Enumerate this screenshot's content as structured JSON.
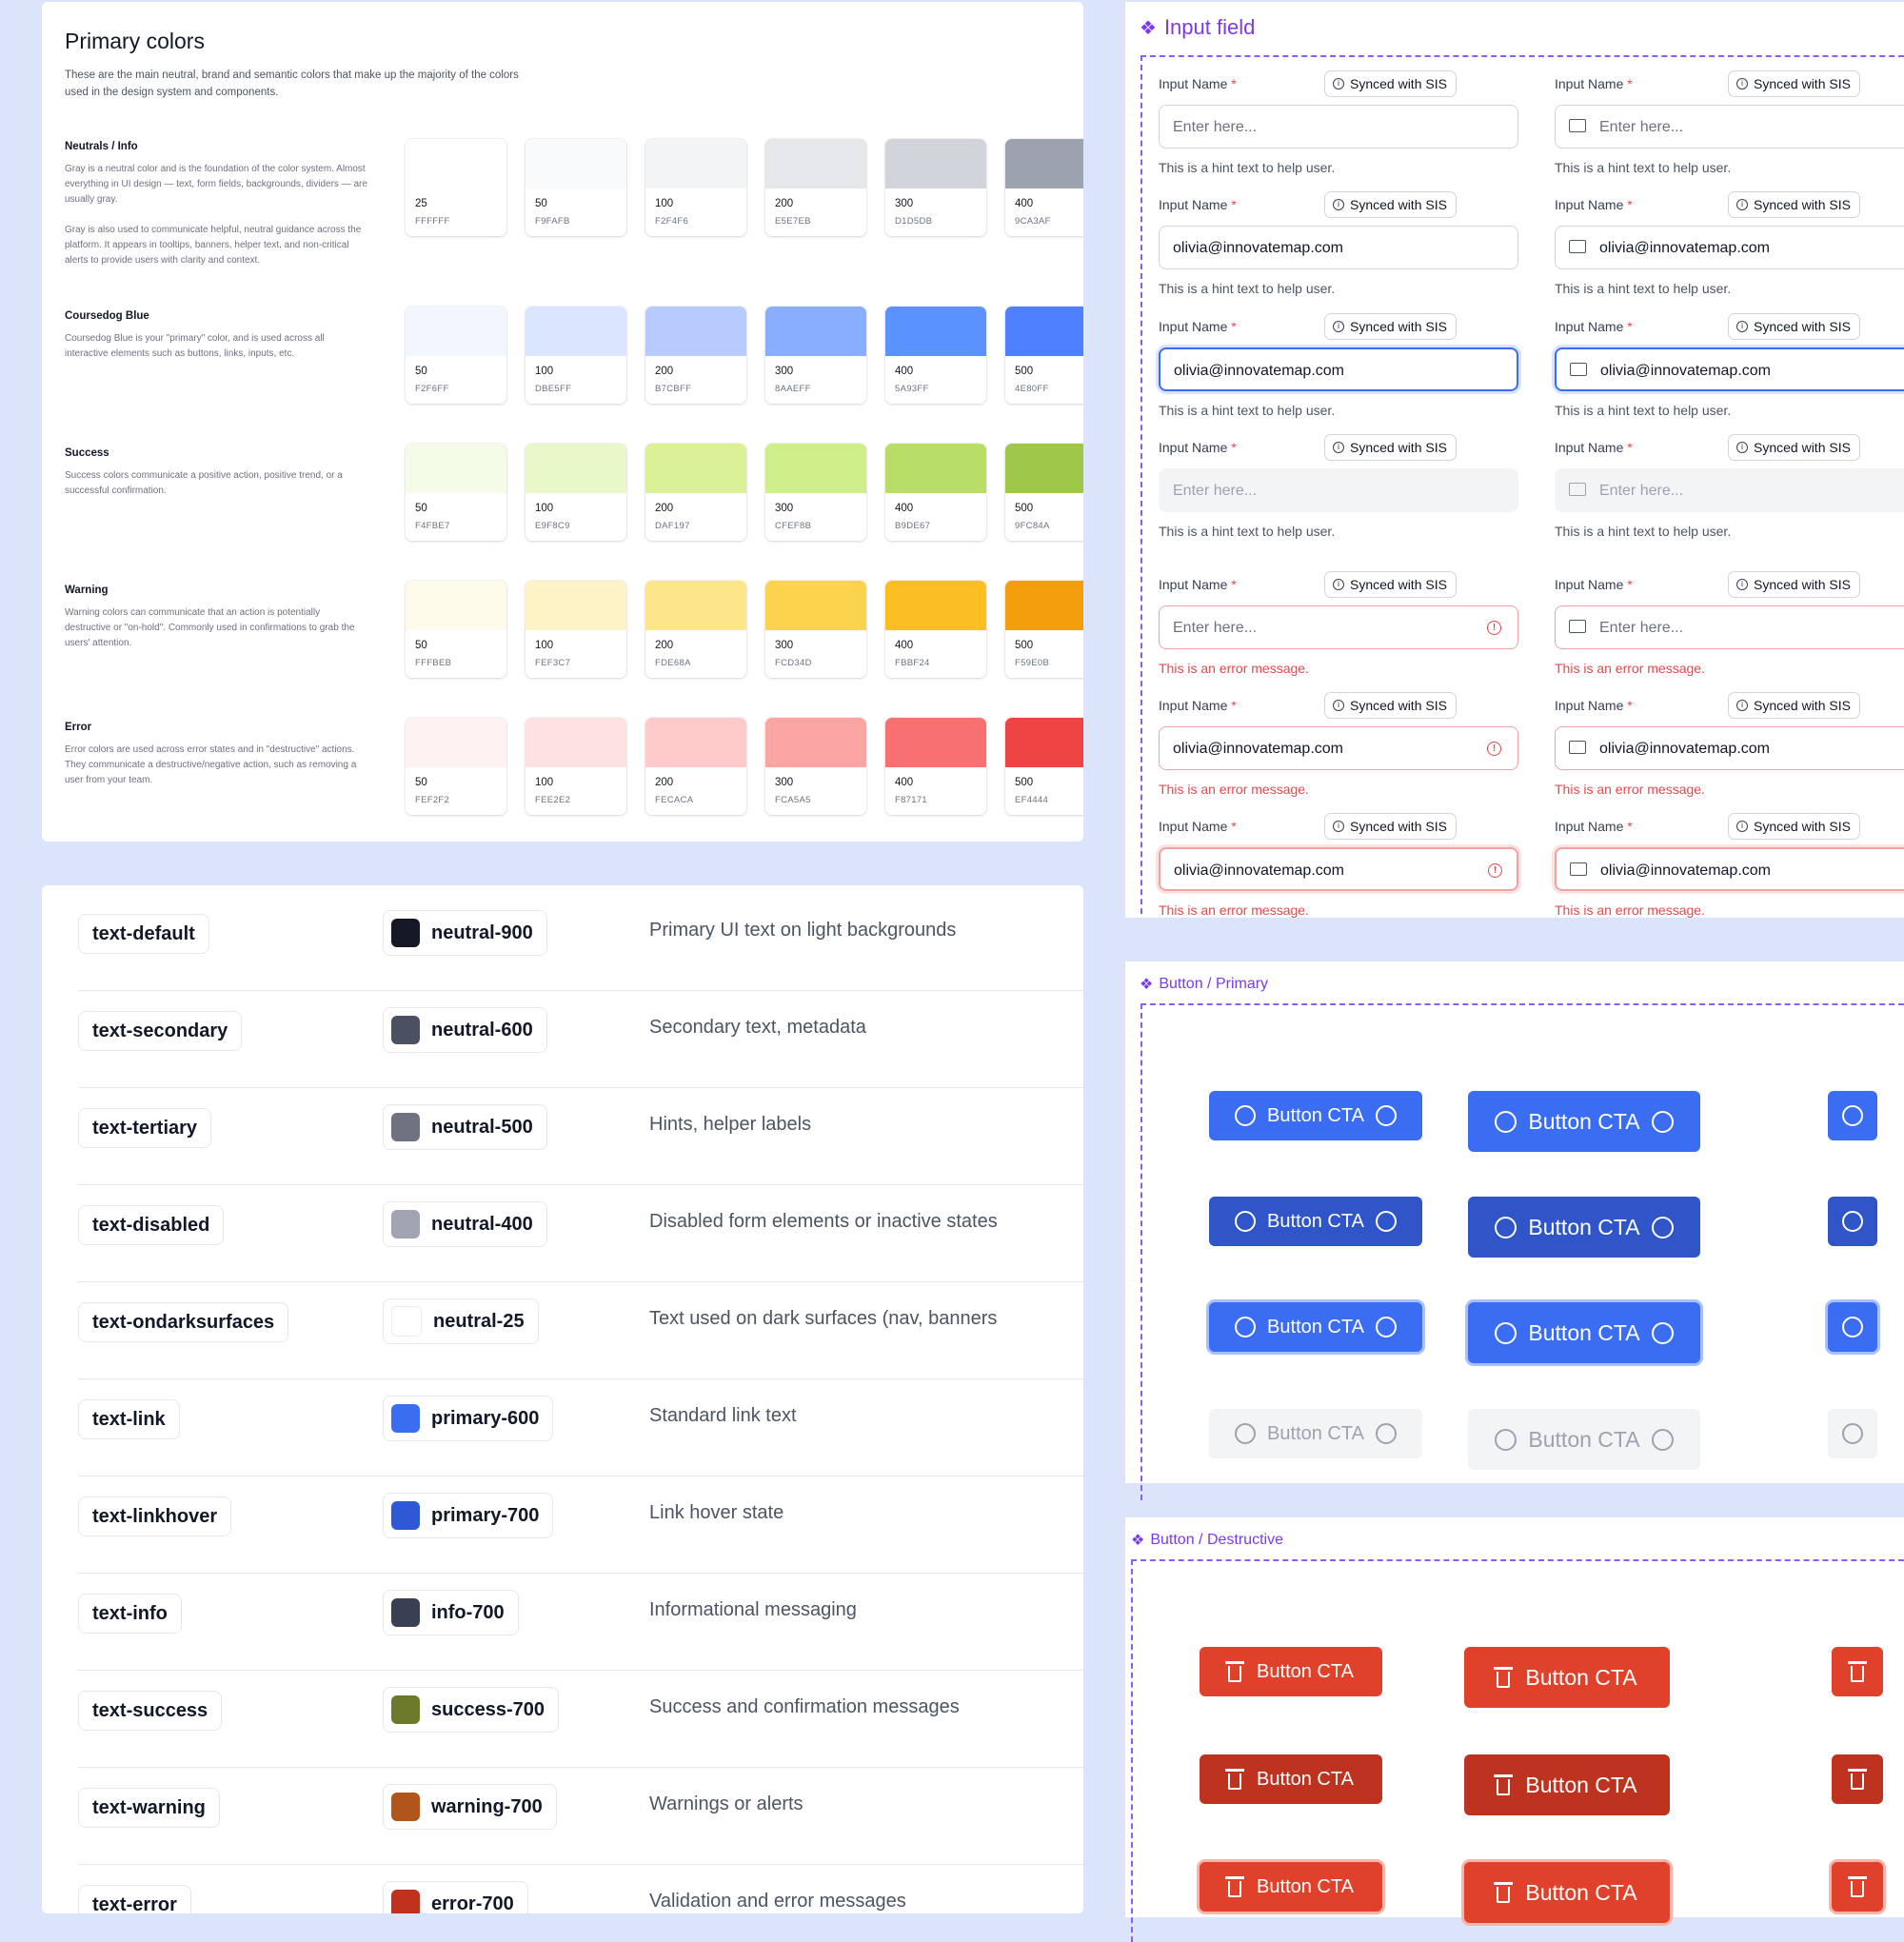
{
  "primary_colors": {
    "title": "Primary colors",
    "intro": "These are the main neutral, brand and semantic colors that make up the majority of the colors used in the design system and components.",
    "groups": [
      {
        "name": "Neutrals / Info",
        "desc": "Gray is a neutral color and is the foundation of the color system. Almost everything in UI design — text, form fields, backgrounds, dividers — are usually gray.\n\nGray is also used to communicate helpful, neutral guidance across the platform. It appears in tooltips, banners, helper text, and non-critical alerts to provide users with clarity and context.",
        "swatches": [
          {
            "step": "25",
            "hex": "FFFFFF",
            "color": "#FFFFFF"
          },
          {
            "step": "50",
            "hex": "F9FAFB",
            "color": "#F9FAFB"
          },
          {
            "step": "100",
            "hex": "F2F4F6",
            "color": "#F2F4F6"
          },
          {
            "step": "200",
            "hex": "E5E7EB",
            "color": "#E5E7EB"
          },
          {
            "step": "300",
            "hex": "D1D5DB",
            "color": "#D1D5DB"
          },
          {
            "step": "400",
            "hex": "9CA3AF",
            "color": "#9CA3AF"
          }
        ]
      },
      {
        "name": "Coursedog Blue",
        "desc": "Coursedog Blue is your \"primary\" color, and is used across all interactive elements such as buttons, links, inputs, etc.",
        "swatches": [
          {
            "step": "50",
            "hex": "F2F6FF",
            "color": "#F2F6FF"
          },
          {
            "step": "100",
            "hex": "DBE5FF",
            "color": "#DBE5FF"
          },
          {
            "step": "200",
            "hex": "B7CBFF",
            "color": "#B7CBFF"
          },
          {
            "step": "300",
            "hex": "8AAEFF",
            "color": "#8AAEFF"
          },
          {
            "step": "400",
            "hex": "5A93FF",
            "color": "#5A93FF"
          },
          {
            "step": "500",
            "hex": "4E80FF",
            "color": "#4E80FF"
          }
        ]
      },
      {
        "name": "Success",
        "desc": "Success colors communicate a positive action, positive trend, or a successful confirmation.",
        "swatches": [
          {
            "step": "50",
            "hex": "F4FBE7",
            "color": "#F4FBE7"
          },
          {
            "step": "100",
            "hex": "E9F8C9",
            "color": "#E9F8C9"
          },
          {
            "step": "200",
            "hex": "DAF197",
            "color": "#DAF197"
          },
          {
            "step": "300",
            "hex": "CFEF8B",
            "color": "#CFEF8B"
          },
          {
            "step": "400",
            "hex": "B9DE67",
            "color": "#B9DE67"
          },
          {
            "step": "500",
            "hex": "9FC84A",
            "color": "#9FC84A"
          }
        ]
      },
      {
        "name": "Warning",
        "desc": "Warning colors can communicate that an action is potentially destructive or \"on-hold\". Commonly used in confirmations to grab the users' attention.",
        "swatches": [
          {
            "step": "50",
            "hex": "FFFBEB",
            "color": "#FFFBEB"
          },
          {
            "step": "100",
            "hex": "FEF3C7",
            "color": "#FEF3C7"
          },
          {
            "step": "200",
            "hex": "FDE68A",
            "color": "#FDE68A"
          },
          {
            "step": "300",
            "hex": "FCD34D",
            "color": "#FCD34D"
          },
          {
            "step": "400",
            "hex": "FBBF24",
            "color": "#FBBF24"
          },
          {
            "step": "500",
            "hex": "F59E0B",
            "color": "#F59E0B"
          }
        ]
      },
      {
        "name": "Error",
        "desc": "Error colors are used across error states and in \"destructive\" actions. They communicate a destructive/negative action, such as removing a user from your team.",
        "swatches": [
          {
            "step": "50",
            "hex": "FEF2F2",
            "color": "#FEF2F2"
          },
          {
            "step": "100",
            "hex": "FEE2E2",
            "color": "#FEE2E2"
          },
          {
            "step": "200",
            "hex": "FECACA",
            "color": "#FECACA"
          },
          {
            "step": "300",
            "hex": "FCA5A5",
            "color": "#FCA5A5"
          },
          {
            "step": "400",
            "hex": "F87171",
            "color": "#F87171"
          },
          {
            "step": "500",
            "hex": "EF4444",
            "color": "#EF4444"
          }
        ]
      }
    ]
  },
  "tokens": [
    {
      "name": "text-default",
      "ref": "neutral-900",
      "color": "#141826",
      "desc": "Primary UI text on light backgrounds"
    },
    {
      "name": "text-secondary",
      "ref": "neutral-600",
      "color": "#4B5063",
      "desc": "Secondary text, metadata"
    },
    {
      "name": "text-tertiary",
      "ref": "neutral-500",
      "color": "#6E7281",
      "desc": "Hints, helper labels"
    },
    {
      "name": "text-disabled",
      "ref": "neutral-400",
      "color": "#A1A5B3",
      "desc": "Disabled form elements or inactive states"
    },
    {
      "name": "text-ondarksurfaces",
      "ref": "neutral-25",
      "color": "#FFFFFF",
      "desc": "Text used on dark surfaces (nav, banners"
    },
    {
      "name": "text-link",
      "ref": "primary-600",
      "color": "#3B6DF3",
      "desc": "Standard link text"
    },
    {
      "name": "text-linkhover",
      "ref": "primary-700",
      "color": "#2F58D6",
      "desc": "Link hover state"
    },
    {
      "name": "text-info",
      "ref": "info-700",
      "color": "#394054",
      "desc": "Informational messaging"
    },
    {
      "name": "text-success",
      "ref": "success-700",
      "color": "#6C7A2A",
      "desc": "Success and confirmation messages"
    },
    {
      "name": "text-warning",
      "ref": "warning-700",
      "color": "#B0561D",
      "desc": "Warnings or alerts"
    },
    {
      "name": "text-error",
      "ref": "error-700",
      "color": "#C0321E",
      "desc": "Validation and error messages"
    }
  ],
  "input_field": {
    "title": "Input field",
    "label": "Input Name",
    "required": "*",
    "sync": "Synced with SIS",
    "placeholder": "Enter here...",
    "value": "olivia@innovatemap.com",
    "hint": "This is a hint text to help user.",
    "error": "This is an error message."
  },
  "button_primary": {
    "title": "Button / Primary",
    "label": "Button CTA"
  },
  "button_destructive": {
    "title": "Button / Destructive",
    "label": "Button CTA"
  },
  "colors": {
    "accent_purple": "#7C3AED",
    "primary": "#3B6DF3",
    "destructive": "#E0412A"
  }
}
